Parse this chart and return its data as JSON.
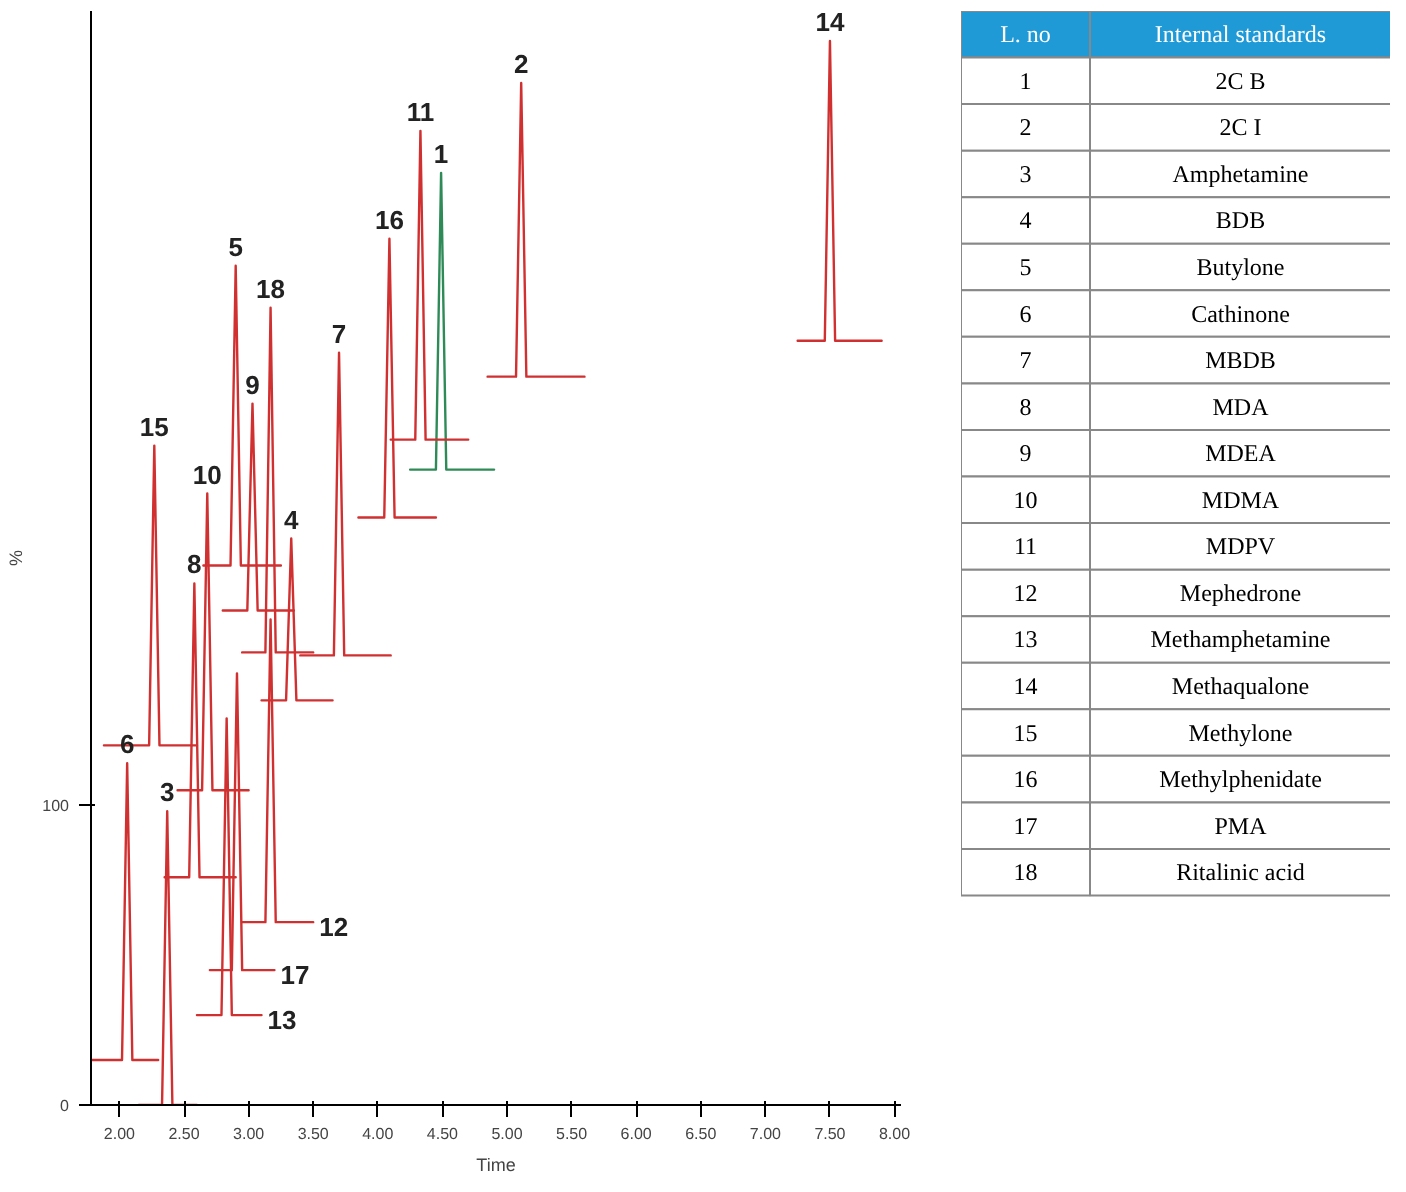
{
  "chart_data": {
    "type": "line",
    "xlabel": "Time",
    "ylabel": "%",
    "xlim": [
      1.78,
      8.05
    ],
    "ylim": [
      0,
      365
    ],
    "xticks": [
      {
        "value": 2,
        "label": "2.00"
      },
      {
        "value": 2.5,
        "label": "2.50"
      },
      {
        "value": 3,
        "label": "3.00"
      },
      {
        "value": 3.5,
        "label": "3.50"
      },
      {
        "value": 4,
        "label": "4.00"
      },
      {
        "value": 4.5,
        "label": "4.50"
      },
      {
        "value": 5,
        "label": "5.00"
      },
      {
        "value": 5.5,
        "label": "5.50"
      },
      {
        "value": 6,
        "label": "6.00"
      },
      {
        "value": 6.5,
        "label": "6.50"
      },
      {
        "value": 7,
        "label": "7.00"
      },
      {
        "value": 7.5,
        "label": "7.50"
      },
      {
        "value": 8,
        "label": "8.00"
      }
    ],
    "yticks": [
      0,
      100
    ],
    "grid": false,
    "legend": false,
    "marker": "none",
    "line_style": "solid",
    "series": [
      {
        "name": "3",
        "color": "#d03030",
        "x": [
          2.15,
          2.33,
          2.37,
          2.41,
          2.6
        ],
        "values": [
          0,
          0,
          98,
          0,
          0
        ]
      },
      {
        "name": "6",
        "color": "#d03030",
        "x": [
          1.78,
          2.02,
          2.06,
          2.1,
          2.3
        ],
        "values": [
          15,
          15,
          114,
          15,
          15
        ]
      },
      {
        "name": "13",
        "color": "#d03030",
        "x": [
          2.6,
          2.79,
          2.83,
          2.87,
          3.1
        ],
        "values": [
          30,
          30,
          129,
          30,
          30
        ]
      },
      {
        "name": "17",
        "color": "#d03030",
        "x": [
          2.7,
          2.87,
          2.91,
          2.95,
          3.2
        ],
        "values": [
          45,
          45,
          144,
          45,
          45
        ]
      },
      {
        "name": "12",
        "color": "#d03030",
        "x": [
          2.95,
          3.13,
          3.17,
          3.21,
          3.5
        ],
        "values": [
          61,
          61,
          162,
          61,
          61
        ]
      },
      {
        "name": "8",
        "color": "#d03030",
        "x": [
          2.35,
          2.54,
          2.58,
          2.62,
          2.9
        ],
        "values": [
          76,
          76,
          174,
          76,
          76
        ]
      },
      {
        "name": "10",
        "color": "#d03030",
        "x": [
          2.45,
          2.64,
          2.68,
          2.72,
          3.0
        ],
        "values": [
          105,
          105,
          204,
          105,
          105
        ]
      },
      {
        "name": "15",
        "color": "#d03030",
        "x": [
          1.88,
          2.23,
          2.27,
          2.31,
          2.6
        ],
        "values": [
          120,
          120,
          220,
          120,
          120
        ]
      },
      {
        "name": "4",
        "color": "#d03030",
        "x": [
          3.1,
          3.29,
          3.33,
          3.37,
          3.65
        ],
        "values": [
          135,
          135,
          189,
          135,
          135
        ]
      },
      {
        "name": "7",
        "color": "#d03030",
        "x": [
          3.4,
          3.66,
          3.7,
          3.74,
          4.1
        ],
        "values": [
          150,
          150,
          251,
          150,
          150
        ]
      },
      {
        "name": "18",
        "color": "#d03030",
        "x": [
          2.95,
          3.13,
          3.17,
          3.21,
          3.5
        ],
        "values": [
          151,
          151,
          266,
          151,
          151
        ]
      },
      {
        "name": "9",
        "color": "#d03030",
        "x": [
          2.8,
          2.99,
          3.03,
          3.07,
          3.35
        ],
        "values": [
          165,
          165,
          234,
          165,
          165
        ]
      },
      {
        "name": "5",
        "color": "#d03030",
        "x": [
          2.65,
          2.86,
          2.9,
          2.94,
          3.25
        ],
        "values": [
          180,
          180,
          280,
          180,
          180
        ]
      },
      {
        "name": "16",
        "color": "#d03030",
        "x": [
          3.85,
          4.05,
          4.09,
          4.13,
          4.45
        ],
        "values": [
          196,
          196,
          289,
          196,
          196
        ]
      },
      {
        "name": "1",
        "color": "#2e8b57",
        "x": [
          4.25,
          4.45,
          4.49,
          4.53,
          4.9
        ],
        "values": [
          212,
          212,
          311,
          212,
          212
        ]
      },
      {
        "name": "11",
        "color": "#d03030",
        "x": [
          4.1,
          4.29,
          4.33,
          4.37,
          4.7
        ],
        "values": [
          222,
          222,
          325,
          222,
          222
        ]
      },
      {
        "name": "2",
        "color": "#d03030",
        "x": [
          4.85,
          5.07,
          5.11,
          5.15,
          5.6
        ],
        "values": [
          243,
          243,
          341,
          243,
          243
        ]
      },
      {
        "name": "14",
        "color": "#d03030",
        "x": [
          7.25,
          7.46,
          7.5,
          7.54,
          7.9
        ],
        "values": [
          255,
          255,
          355,
          255,
          255
        ]
      }
    ],
    "annotations": [
      "L. no",
      "Internal standards",
      "1",
      "2C B",
      "2",
      "2C I",
      "3",
      "Amphetamine",
      "4",
      "BDB",
      "5",
      "Butylone",
      "6",
      "Cathinone",
      "7",
      "MBDB",
      "8",
      "MDA",
      "9",
      "MDEA",
      "10",
      "MDMA",
      "11",
      "MDPV",
      "12",
      "Mephedrone",
      "13",
      "Methamphetamine",
      "14",
      "Methaqualone",
      "15",
      "Methylone",
      "16",
      "Methylphenidate",
      "17",
      "PMA",
      "18",
      "Ritalinic acid"
    ]
  }
}
